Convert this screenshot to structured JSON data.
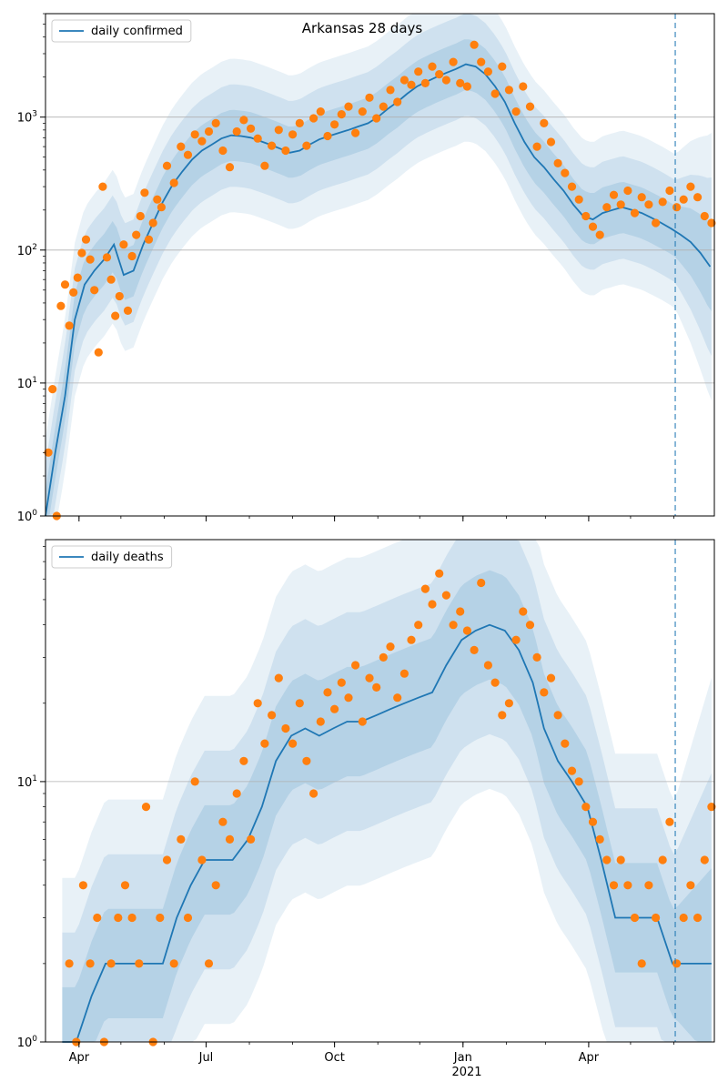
{
  "figure": {
    "title": "Arkansas 28 days"
  },
  "x_axis": {
    "type": "date",
    "ticks": [
      {
        "label": "Apr",
        "date": "2020-04-01"
      },
      {
        "label": "Jul",
        "date": "2020-07-01"
      },
      {
        "label": "Oct",
        "date": "2020-10-01"
      },
      {
        "label": "Jan",
        "date": "2021-01-01"
      },
      {
        "label": "Apr",
        "date": "2021-04-01"
      }
    ],
    "year_label": "2021"
  },
  "colors": {
    "line": "#1f77b4",
    "points": "#ff7f0e",
    "band": "#1f77b4",
    "forecast_marker": "#1f77b4",
    "grid": "#b0b0b0"
  },
  "chart_data": [
    {
      "type": "line",
      "legend": "daily confirmed",
      "legend_location": "upper left",
      "yscale": "log",
      "ylim": [
        1,
        6000
      ],
      "xlim": [
        "2020-03-08",
        "2021-06-30"
      ],
      "ytick_labels": [
        "10^0",
        "10^1",
        "10^2",
        "10^3"
      ],
      "grid": "horizontal",
      "forecast_start": "2021-06-02",
      "series": [
        {
          "name": "daily confirmed",
          "x": [
            "2020-03-08",
            "2020-03-15",
            "2020-03-22",
            "2020-03-29",
            "2020-04-05",
            "2020-04-12",
            "2020-04-19",
            "2020-04-26",
            "2020-05-03",
            "2020-05-10",
            "2020-05-17",
            "2020-05-24",
            "2020-05-31",
            "2020-06-07",
            "2020-06-14",
            "2020-06-21",
            "2020-06-28",
            "2020-07-05",
            "2020-07-12",
            "2020-07-19",
            "2020-07-26",
            "2020-08-02",
            "2020-08-09",
            "2020-08-16",
            "2020-08-23",
            "2020-08-30",
            "2020-09-06",
            "2020-09-13",
            "2020-09-20",
            "2020-09-27",
            "2020-10-04",
            "2020-10-11",
            "2020-10-18",
            "2020-10-25",
            "2020-11-01",
            "2020-11-08",
            "2020-11-15",
            "2020-11-22",
            "2020-11-29",
            "2020-12-06",
            "2020-12-13",
            "2020-12-20",
            "2020-12-27",
            "2021-01-03",
            "2021-01-10",
            "2021-01-17",
            "2021-01-24",
            "2021-01-31",
            "2021-02-07",
            "2021-02-14",
            "2021-02-21",
            "2021-02-28",
            "2021-03-07",
            "2021-03-14",
            "2021-03-21",
            "2021-03-28",
            "2021-04-04",
            "2021-04-11",
            "2021-04-18",
            "2021-04-25",
            "2021-05-02",
            "2021-05-09",
            "2021-05-16",
            "2021-05-23",
            "2021-05-30",
            "2021-06-06",
            "2021-06-13",
            "2021-06-20",
            "2021-06-27"
          ],
          "y": [
            1,
            3,
            8,
            30,
            55,
            70,
            85,
            110,
            65,
            70,
            110,
            160,
            230,
            310,
            390,
            480,
            560,
            620,
            690,
            730,
            720,
            700,
            660,
            620,
            580,
            540,
            560,
            620,
            680,
            720,
            760,
            800,
            850,
            900,
            1000,
            1150,
            1300,
            1500,
            1700,
            1850,
            2000,
            2150,
            2300,
            2500,
            2400,
            2100,
            1700,
            1300,
            900,
            650,
            500,
            420,
            340,
            280,
            220,
            180,
            170,
            190,
            200,
            210,
            200,
            190,
            175,
            160,
            145,
            130,
            115,
            95,
            75
          ]
        }
      ],
      "points": {
        "name": "observed daily confirmed",
        "x": [
          "2020-03-10",
          "2020-03-13",
          "2020-03-16",
          "2020-03-19",
          "2020-03-22",
          "2020-03-25",
          "2020-03-28",
          "2020-03-31",
          "2020-04-03",
          "2020-04-06",
          "2020-04-09",
          "2020-04-12",
          "2020-04-15",
          "2020-04-18",
          "2020-04-21",
          "2020-04-24",
          "2020-04-27",
          "2020-04-30",
          "2020-05-03",
          "2020-05-06",
          "2020-05-09",
          "2020-05-12",
          "2020-05-15",
          "2020-05-18",
          "2020-05-21",
          "2020-05-24",
          "2020-05-27",
          "2020-05-30",
          "2020-06-03",
          "2020-06-08",
          "2020-06-13",
          "2020-06-18",
          "2020-06-23",
          "2020-06-28",
          "2020-07-03",
          "2020-07-08",
          "2020-07-13",
          "2020-07-18",
          "2020-07-23",
          "2020-07-28",
          "2020-08-02",
          "2020-08-07",
          "2020-08-12",
          "2020-08-17",
          "2020-08-22",
          "2020-08-27",
          "2020-09-01",
          "2020-09-06",
          "2020-09-11",
          "2020-09-16",
          "2020-09-21",
          "2020-09-26",
          "2020-10-01",
          "2020-10-06",
          "2020-10-11",
          "2020-10-16",
          "2020-10-21",
          "2020-10-26",
          "2020-10-31",
          "2020-11-05",
          "2020-11-10",
          "2020-11-15",
          "2020-11-20",
          "2020-11-25",
          "2020-11-30",
          "2020-12-05",
          "2020-12-10",
          "2020-12-15",
          "2020-12-20",
          "2020-12-25",
          "2020-12-30",
          "2021-01-04",
          "2021-01-09",
          "2021-01-14",
          "2021-01-19",
          "2021-01-24",
          "2021-01-29",
          "2021-02-03",
          "2021-02-08",
          "2021-02-13",
          "2021-02-18",
          "2021-02-23",
          "2021-02-28",
          "2021-03-05",
          "2021-03-10",
          "2021-03-15",
          "2021-03-20",
          "2021-03-25",
          "2021-03-30",
          "2021-04-04",
          "2021-04-09",
          "2021-04-14",
          "2021-04-19",
          "2021-04-24",
          "2021-04-29",
          "2021-05-04",
          "2021-05-09",
          "2021-05-14",
          "2021-05-19",
          "2021-05-24",
          "2021-05-29",
          "2021-06-03",
          "2021-06-08",
          "2021-06-13",
          "2021-06-18",
          "2021-06-23",
          "2021-06-28"
        ],
        "y": [
          3,
          9,
          1,
          38,
          55,
          27,
          48,
          62,
          95,
          120,
          85,
          50,
          17,
          300,
          88,
          60,
          32,
          45,
          110,
          35,
          90,
          130,
          180,
          270,
          120,
          160,
          240,
          210,
          430,
          320,
          600,
          520,
          740,
          660,
          780,
          900,
          560,
          420,
          780,
          950,
          820,
          690,
          430,
          610,
          800,
          560,
          740,
          900,
          610,
          980,
          1100,
          720,
          880,
          1050,
          1200,
          760,
          1100,
          1400,
          980,
          1200,
          1600,
          1300,
          1900,
          1750,
          2200,
          1800,
          2400,
          2100,
          1900,
          2600,
          1800,
          1700,
          3500,
          2600,
          2200,
          1500,
          2400,
          1600,
          1100,
          1700,
          1200,
          600,
          900,
          650,
          450,
          380,
          300,
          240,
          180,
          150,
          130,
          210,
          260,
          220,
          280,
          190,
          250,
          220,
          160,
          230,
          280,
          210,
          240,
          300,
          250,
          180,
          160
        ]
      }
    },
    {
      "type": "line",
      "legend": "daily deaths",
      "legend_location": "upper left",
      "yscale": "log",
      "ylim": [
        1,
        85
      ],
      "xlim": [
        "2020-03-08",
        "2021-06-30"
      ],
      "ytick_labels": [
        "10^0",
        "10^1"
      ],
      "grid": "horizontal",
      "forecast_start": "2021-06-02",
      "series": [
        {
          "name": "daily deaths",
          "x": [
            "2020-03-20",
            "2020-03-30",
            "2020-04-10",
            "2020-04-20",
            "2020-05-01",
            "2020-05-10",
            "2020-05-20",
            "2020-05-31",
            "2020-06-10",
            "2020-06-20",
            "2020-06-30",
            "2020-07-10",
            "2020-07-20",
            "2020-07-31",
            "2020-08-10",
            "2020-08-20",
            "2020-08-31",
            "2020-09-10",
            "2020-09-20",
            "2020-09-30",
            "2020-10-10",
            "2020-10-20",
            "2020-10-31",
            "2020-11-10",
            "2020-11-20",
            "2020-11-30",
            "2020-12-10",
            "2020-12-20",
            "2020-12-31",
            "2021-01-10",
            "2021-01-20",
            "2021-01-31",
            "2021-02-10",
            "2021-02-20",
            "2021-02-28",
            "2021-03-10",
            "2021-03-20",
            "2021-03-31",
            "2021-04-10",
            "2021-04-20",
            "2021-04-30",
            "2021-05-10",
            "2021-05-20",
            "2021-05-31",
            "2021-06-10",
            "2021-06-20",
            "2021-06-28"
          ],
          "y": [
            1,
            1,
            1.5,
            2,
            2,
            2,
            2,
            2,
            3,
            4,
            5,
            5,
            5,
            6,
            8,
            12,
            15,
            16,
            15,
            16,
            17,
            17,
            18,
            19,
            20,
            21,
            22,
            28,
            35,
            38,
            40,
            38,
            32,
            24,
            16,
            12,
            10,
            8,
            5,
            3,
            3,
            3,
            3,
            2,
            2,
            2,
            2
          ]
        }
      ],
      "points": {
        "name": "observed daily deaths",
        "x": [
          "2020-03-25",
          "2020-03-30",
          "2020-04-04",
          "2020-04-09",
          "2020-04-14",
          "2020-04-19",
          "2020-04-24",
          "2020-04-29",
          "2020-05-04",
          "2020-05-09",
          "2020-05-14",
          "2020-05-19",
          "2020-05-24",
          "2020-05-29",
          "2020-06-03",
          "2020-06-08",
          "2020-06-13",
          "2020-06-18",
          "2020-06-23",
          "2020-06-28",
          "2020-07-03",
          "2020-07-08",
          "2020-07-13",
          "2020-07-18",
          "2020-07-23",
          "2020-07-28",
          "2020-08-02",
          "2020-08-07",
          "2020-08-12",
          "2020-08-17",
          "2020-08-22",
          "2020-08-27",
          "2020-09-01",
          "2020-09-06",
          "2020-09-11",
          "2020-09-16",
          "2020-09-21",
          "2020-09-26",
          "2020-10-01",
          "2020-10-06",
          "2020-10-11",
          "2020-10-16",
          "2020-10-21",
          "2020-10-26",
          "2020-10-31",
          "2020-11-05",
          "2020-11-10",
          "2020-11-15",
          "2020-11-20",
          "2020-11-25",
          "2020-11-30",
          "2020-12-05",
          "2020-12-10",
          "2020-12-15",
          "2020-12-20",
          "2020-12-25",
          "2020-12-30",
          "2021-01-04",
          "2021-01-09",
          "2021-01-14",
          "2021-01-19",
          "2021-01-24",
          "2021-01-29",
          "2021-02-03",
          "2021-02-08",
          "2021-02-13",
          "2021-02-18",
          "2021-02-23",
          "2021-02-28",
          "2021-03-05",
          "2021-03-10",
          "2021-03-15",
          "2021-03-20",
          "2021-03-25",
          "2021-03-30",
          "2021-04-04",
          "2021-04-09",
          "2021-04-14",
          "2021-04-19",
          "2021-04-24",
          "2021-04-29",
          "2021-05-04",
          "2021-05-09",
          "2021-05-14",
          "2021-05-19",
          "2021-05-24",
          "2021-05-29",
          "2021-06-03",
          "2021-06-08",
          "2021-06-13",
          "2021-06-18",
          "2021-06-23",
          "2021-06-28"
        ],
        "y": [
          2,
          1,
          4,
          2,
          3,
          1,
          2,
          3,
          4,
          3,
          2,
          8,
          1,
          3,
          5,
          2,
          6,
          3,
          10,
          5,
          2,
          4,
          7,
          6,
          9,
          12,
          6,
          20,
          14,
          18,
          25,
          16,
          14,
          20,
          12,
          9,
          17,
          22,
          19,
          24,
          21,
          28,
          17,
          25,
          23,
          30,
          33,
          21,
          26,
          35,
          40,
          55,
          48,
          63,
          52,
          40,
          45,
          38,
          32,
          58,
          28,
          24,
          18,
          20,
          35,
          45,
          40,
          30,
          22,
          25,
          18,
          14,
          11,
          10,
          8,
          7,
          6,
          5,
          4,
          5,
          4,
          3,
          2,
          4,
          3,
          5,
          7,
          2,
          3,
          4,
          3,
          5,
          8
        ]
      }
    }
  ]
}
